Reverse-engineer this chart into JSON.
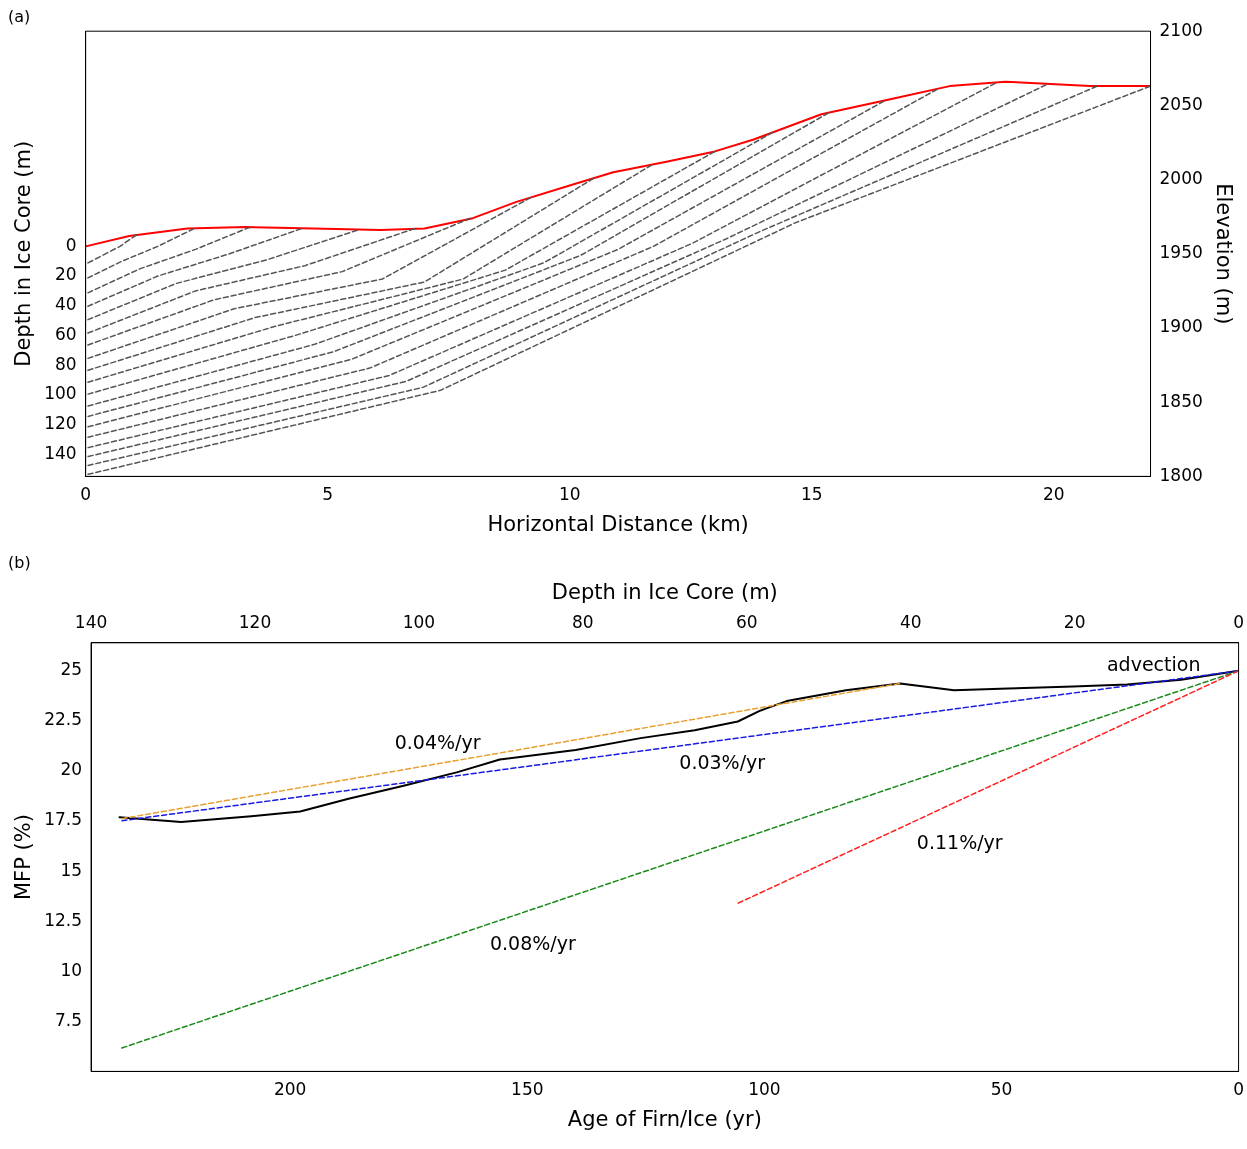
{
  "chart_data": [
    {
      "type": "line",
      "title": "(a)",
      "xlabel": "Horizontal Distance (km)",
      "ylabel": "Depth in Ice Core (m)",
      "y2label": "Elevation (m)",
      "xlim": [
        0,
        22
      ],
      "xticks": [
        0,
        5,
        10,
        15,
        20
      ],
      "ylim": [
        155,
        -145
      ],
      "yticks": [
        0,
        20,
        40,
        60,
        80,
        100,
        120,
        140
      ],
      "y2lim": [
        1800,
        2100
      ],
      "y2ticks": [
        1800,
        1850,
        1900,
        1950,
        2000,
        2050,
        2100
      ],
      "marker": "none",
      "series": [
        {
          "color": "#ff0000",
          "axis": "y2",
          "line_style": "solid",
          "x": [
            0,
            0.9,
            2.1,
            3.3,
            4.7,
            6.1,
            7,
            8,
            8.9,
            10,
            10.9,
            12,
            13,
            13.8,
            15.2,
            16.6,
            17.85,
            19,
            20.75,
            22
          ],
          "values": [
            1955,
            1962,
            1967,
            1968,
            1967,
            1966,
            1967,
            1974,
            1985,
            1996,
            2005,
            2012,
            2019,
            2027,
            2044,
            2054,
            2063,
            2066,
            2063,
            2063
          ]
        },
        {
          "color": "#555555",
          "axis": "y2",
          "line_style": "dashed",
          "x": [
            0,
            0.35,
            0.71,
            1.06
          ],
          "values": [
            1943,
            1949,
            1955,
            1963
          ]
        },
        {
          "color": "#555555",
          "axis": "y2",
          "line_style": "dashed",
          "x": [
            0,
            0.75,
            1.49,
            2.24
          ],
          "values": [
            1933,
            1945,
            1955,
            1967
          ]
        },
        {
          "color": "#555555",
          "axis": "y2",
          "line_style": "dashed",
          "x": [
            0,
            1.13,
            2.27,
            3.4
          ],
          "values": [
            1923,
            1940,
            1953,
            1968
          ]
        },
        {
          "color": "#555555",
          "axis": "y2",
          "line_style": "dashed",
          "x": [
            0,
            1.49,
            2.97,
            4.46
          ],
          "values": [
            1914,
            1935,
            1950,
            1967
          ]
        },
        {
          "color": "#555555",
          "axis": "y2",
          "line_style": "dashed",
          "x": [
            0,
            1.87,
            3.75,
            5.62
          ],
          "values": [
            1905,
            1930,
            1946,
            1966
          ]
        },
        {
          "color": "#555555",
          "axis": "y2",
          "line_style": "dashed",
          "x": [
            0,
            2.27,
            4.53,
            6.8
          ],
          "values": [
            1896,
            1925,
            1942,
            1967
          ]
        },
        {
          "color": "#555555",
          "axis": "y2",
          "line_style": "dashed",
          "x": [
            0,
            2.65,
            5.3,
            7.95
          ],
          "values": [
            1888,
            1919,
            1938,
            1974
          ]
        },
        {
          "color": "#555555",
          "axis": "y2",
          "line_style": "dashed",
          "x": [
            0,
            3.07,
            6.13,
            9.2
          ],
          "values": [
            1879,
            1913,
            1933,
            1988
          ]
        },
        {
          "color": "#555555",
          "axis": "y2",
          "line_style": "dashed",
          "x": [
            0,
            3.5,
            7,
            10.5
          ],
          "values": [
            1871,
            1907,
            1931,
            2001
          ]
        },
        {
          "color": "#555555",
          "axis": "y2",
          "line_style": "dashed",
          "x": [
            0,
            3.9,
            7.8,
            11.7
          ],
          "values": [
            1863,
            1901,
            1933,
            2010
          ]
        },
        {
          "color": "#555555",
          "axis": "y2",
          "line_style": "dashed",
          "x": [
            0,
            4.33,
            8.67,
            13
          ],
          "values": [
            1855,
            1895,
            1939,
            2019
          ]
        },
        {
          "color": "#555555",
          "axis": "y2",
          "line_style": "dashed",
          "x": [
            0,
            4.73,
            9.47,
            14.2
          ],
          "values": [
            1847,
            1889,
            1944,
            2032
          ]
        },
        {
          "color": "#555555",
          "axis": "y2",
          "line_style": "dashed",
          "x": [
            0,
            5.12,
            10.23,
            15.35
          ],
          "values": [
            1840,
            1884,
            1949,
            2045
          ]
        },
        {
          "color": "#555555",
          "axis": "y2",
          "line_style": "dashed",
          "x": [
            0,
            5.5,
            11,
            16.5
          ],
          "values": [
            1833,
            1879,
            1953,
            2053
          ]
        },
        {
          "color": "#555555",
          "axis": "y2",
          "line_style": "dashed",
          "x": [
            0,
            5.87,
            11.73,
            17.6
          ],
          "values": [
            1826,
            1873,
            1955,
            2061
          ]
        },
        {
          "color": "#555555",
          "axis": "y2",
          "line_style": "dashed",
          "x": [
            0,
            6.27,
            12.53,
            18.8
          ],
          "values": [
            1819,
            1868,
            1957,
            2065
          ]
        },
        {
          "color": "#555555",
          "axis": "y2",
          "line_style": "dashed",
          "x": [
            0,
            6.62,
            13.23,
            19.85
          ],
          "values": [
            1813,
            1864,
            1960,
            2064
          ]
        },
        {
          "color": "#555555",
          "axis": "y2",
          "line_style": "dashed",
          "x": [
            0,
            6.97,
            13.93,
            20.9
          ],
          "values": [
            1807,
            1860,
            1965,
            2063
          ]
        },
        {
          "color": "#555555",
          "axis": "y2",
          "line_style": "dashed",
          "x": [
            0,
            7.33,
            14.67,
            22
          ],
          "values": [
            1801,
            1858,
            1971,
            2063
          ]
        }
      ]
    },
    {
      "type": "line",
      "title": "(b)",
      "xlabel": "Age of Firn/Ice (yr)",
      "ylabel": "MFP (%)",
      "x2label": "Depth in Ice Core (m)",
      "xlim": [
        242,
        0
      ],
      "xticks": [
        200,
        150,
        100,
        50,
        0
      ],
      "x2lim": [
        140,
        0
      ],
      "x2ticks": [
        140,
        120,
        100,
        80,
        60,
        40,
        20,
        0
      ],
      "ylim": [
        5,
        26.4
      ],
      "yticks": [
        7.5,
        10,
        12.5,
        15,
        17.5,
        20,
        22.5,
        25
      ],
      "marker": "none",
      "series": [
        {
          "color": "#000000",
          "line_style": "solid",
          "x": [
            236,
            223,
            208.2,
            197.9,
            187.7,
            176.3,
            164.9,
            155.8,
            139.8,
            126.1,
            114.7,
            105.6,
            101,
            95.3,
            82.8,
            71.4,
            60,
            48.6,
            34.9,
            23.5,
            12.1,
            0
          ],
          "values": [
            17.69,
            17.45,
            17.74,
            17.98,
            18.61,
            19.25,
            19.93,
            20.57,
            21.05,
            21.64,
            22.03,
            22.47,
            23,
            23.49,
            24.03,
            24.37,
            24.03,
            24.12,
            24.22,
            24.32,
            24.56,
            25
          ]
        },
        {
          "color": "#e8a030",
          "line_style": "dashed",
          "x": [
            236,
            71.4
          ],
          "values": [
            17.6,
            24.37
          ]
        },
        {
          "color": "#1a1ae0",
          "line_style": "dashed",
          "x": [
            236,
            0
          ],
          "values": [
            17.5,
            25
          ]
        },
        {
          "color": "#1a8a1a",
          "line_style": "dashed",
          "x": [
            236,
            0
          ],
          "values": [
            6.13,
            25
          ]
        },
        {
          "color": "#ff2020",
          "line_style": "dashed",
          "x": [
            106,
            0
          ],
          "values": [
            13.35,
            25
          ]
        }
      ],
      "annotations": [
        "0.04%/yr",
        "0.03%/yr",
        "0.11%/yr",
        "0.08%/yr",
        "advection"
      ]
    }
  ]
}
